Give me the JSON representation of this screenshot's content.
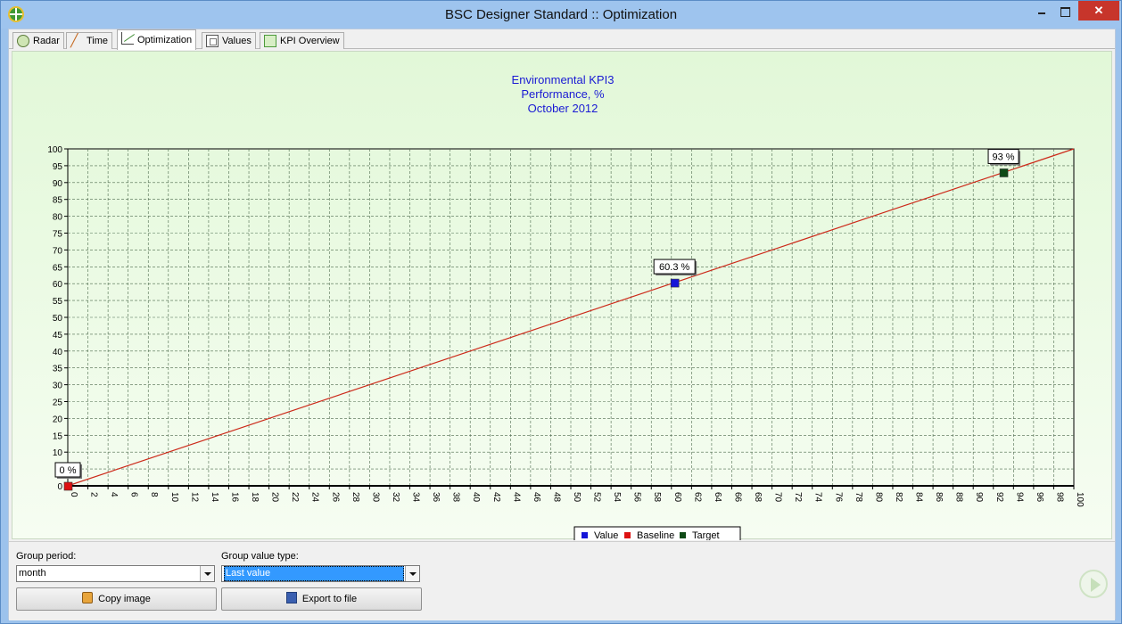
{
  "window": {
    "title": "BSC Designer Standard :: Optimization",
    "close_label": "✕"
  },
  "tabs": [
    {
      "label": "Radar",
      "icon": "radar-icon"
    },
    {
      "label": "Time",
      "icon": "time-chart-icon"
    },
    {
      "label": "Optimization",
      "icon": "optimization-chart-icon",
      "active": true
    },
    {
      "label": "Values",
      "icon": "values-icon"
    },
    {
      "label": "KPI Overview",
      "icon": "kpi-overview-icon"
    }
  ],
  "chart_data": {
    "type": "line",
    "title": "Environmental KPI3",
    "subtitle": "Performance, %",
    "period": "October 2012",
    "xlim": [
      0,
      100
    ],
    "ylim": [
      0,
      100
    ],
    "x_tick_step": 2,
    "y_tick_step": 5,
    "grid": true,
    "line": {
      "x": [
        0,
        100
      ],
      "y": [
        0,
        100
      ],
      "color": "#cc2a1a"
    },
    "points": [
      {
        "series": "Value",
        "x": 60.3,
        "y": 60.3,
        "label": "60.3 %",
        "color": "#1515d8"
      },
      {
        "series": "Baseline",
        "x": 0,
        "y": 0,
        "label": "0 %",
        "color": "#dd1111"
      },
      {
        "series": "Target",
        "x": 93,
        "y": 93,
        "label": "93 %",
        "color": "#0f4a16"
      }
    ],
    "legend": {
      "placement": "bottom-center",
      "entries": [
        {
          "name": "Value",
          "color": "#1515d8"
        },
        {
          "name": "Baseline",
          "color": "#dd1111"
        },
        {
          "name": "Target",
          "color": "#0f4a16"
        }
      ]
    }
  },
  "controls": {
    "group_period_label": "Group period:",
    "group_period_value": "month",
    "group_value_type_label": "Group value type:",
    "group_value_type_value": "Last value",
    "copy_image_label": "Copy image",
    "export_label": "Export to file"
  }
}
